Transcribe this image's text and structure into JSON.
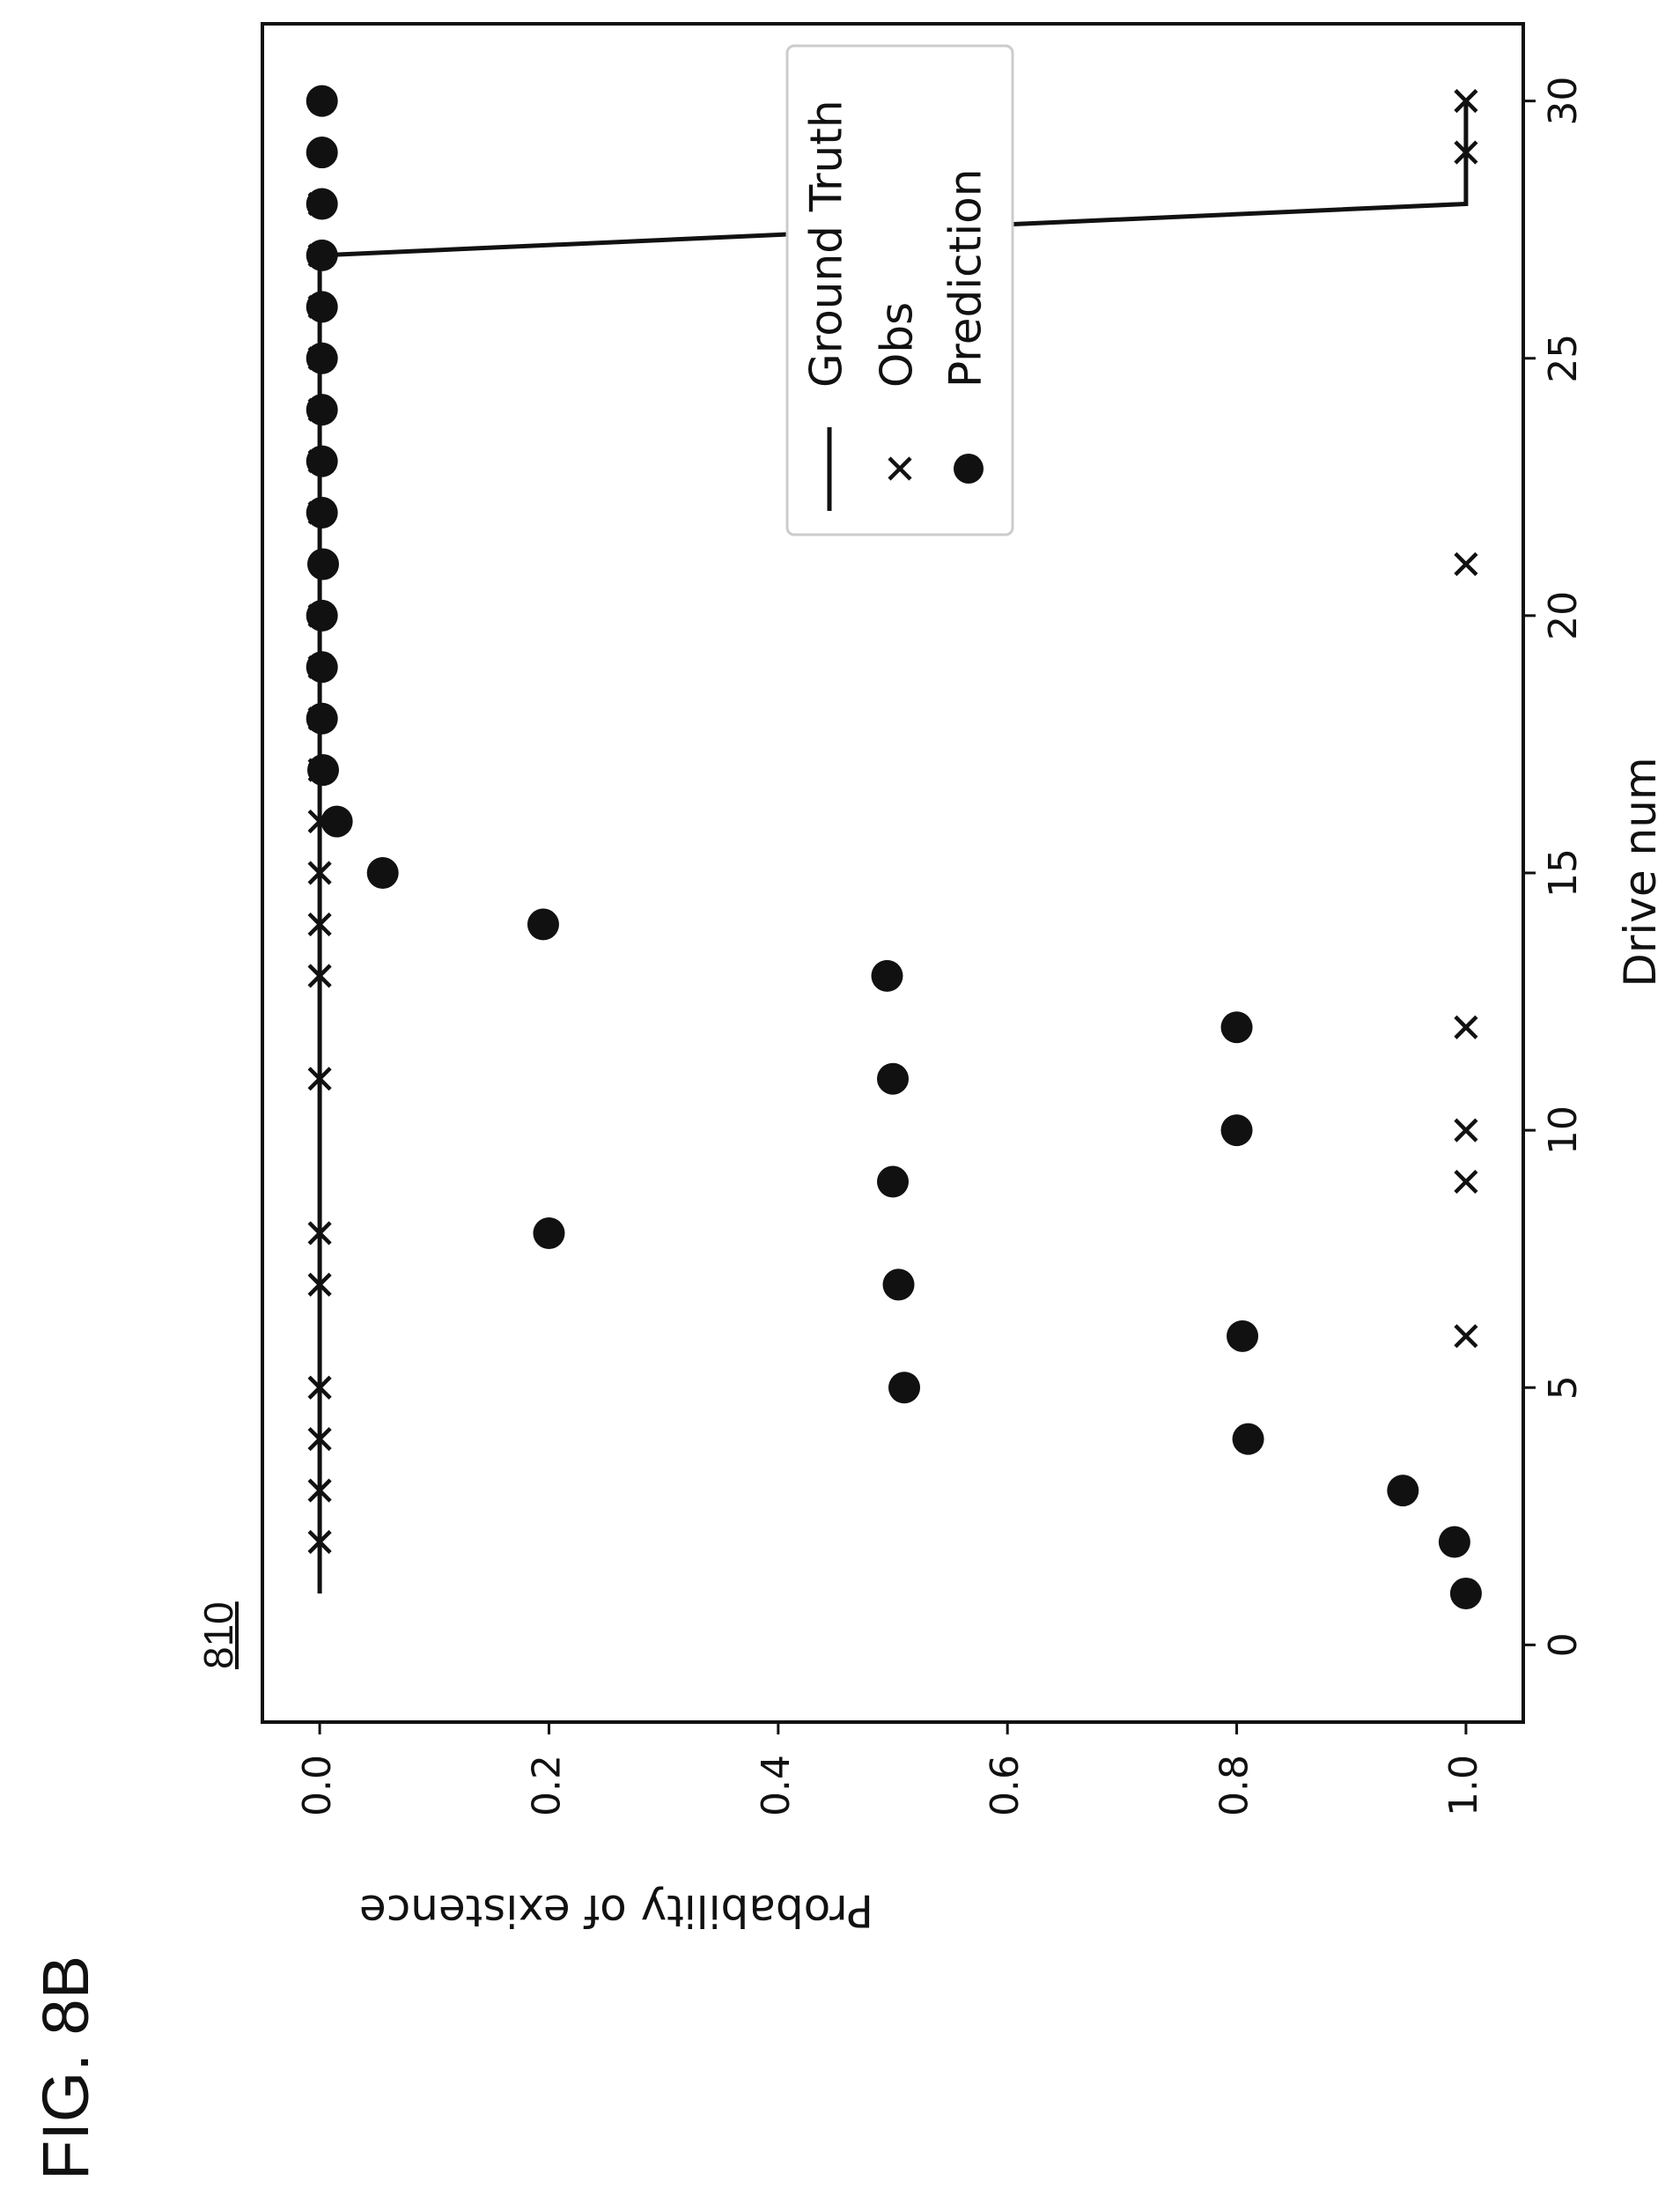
{
  "figure_label": "FIG. 8B",
  "reference_number": "810",
  "colors": {
    "ink": "#111111",
    "legend_border": "#cccccc"
  },
  "chart_data": {
    "type": "scatter",
    "title": "",
    "xlabel": "Drive num",
    "ylabel": "Probability of existence",
    "xlim": [
      -1.5,
      31.5
    ],
    "ylim": [
      -0.05,
      1.05
    ],
    "xticks": [
      "0",
      "5",
      "10",
      "15",
      "20",
      "25",
      "30"
    ],
    "yticks": [
      "0.0",
      "0.2",
      "0.4",
      "0.6",
      "0.8",
      "1.0"
    ],
    "grid": false,
    "legend_position": "top-right",
    "series": [
      {
        "name": "Ground Truth",
        "kind": "line",
        "x": [
          1,
          27,
          28,
          30
        ],
        "y": [
          0,
          0,
          1,
          1
        ]
      },
      {
        "name": "Obs",
        "kind": "x-marker",
        "x": [
          1,
          2,
          3,
          4,
          5,
          6,
          7,
          8,
          9,
          10,
          11,
          12,
          13,
          14,
          15,
          16,
          17,
          18,
          19,
          20,
          21,
          22,
          23,
          24,
          25,
          26,
          27,
          28,
          29,
          30
        ],
        "y": [
          1,
          0,
          0,
          0,
          0,
          1,
          0,
          0,
          1,
          1,
          0,
          1,
          0,
          0,
          0,
          0,
          0,
          0,
          0,
          0,
          1,
          0,
          0,
          0,
          0,
          0,
          0,
          0,
          1,
          1
        ]
      },
      {
        "name": "Prediction",
        "kind": "circle-marker",
        "x": [
          1,
          2,
          3,
          4,
          5,
          6,
          7,
          8,
          9,
          10,
          11,
          12,
          13,
          14,
          15,
          16,
          17,
          18,
          19,
          20,
          21,
          22,
          23,
          24,
          25,
          26,
          27,
          28,
          29,
          30
        ],
        "y": [
          1.0,
          0.99,
          0.945,
          0.81,
          0.51,
          0.805,
          0.505,
          0.2,
          0.5,
          0.8,
          0.5,
          0.8,
          0.495,
          0.195,
          0.055,
          0.015,
          0.003,
          0.002,
          0.002,
          0.002,
          0.003,
          0.002,
          0.002,
          0.002,
          0.002,
          0.002,
          0.002,
          0.002,
          0.002,
          0.002
        ]
      }
    ]
  }
}
